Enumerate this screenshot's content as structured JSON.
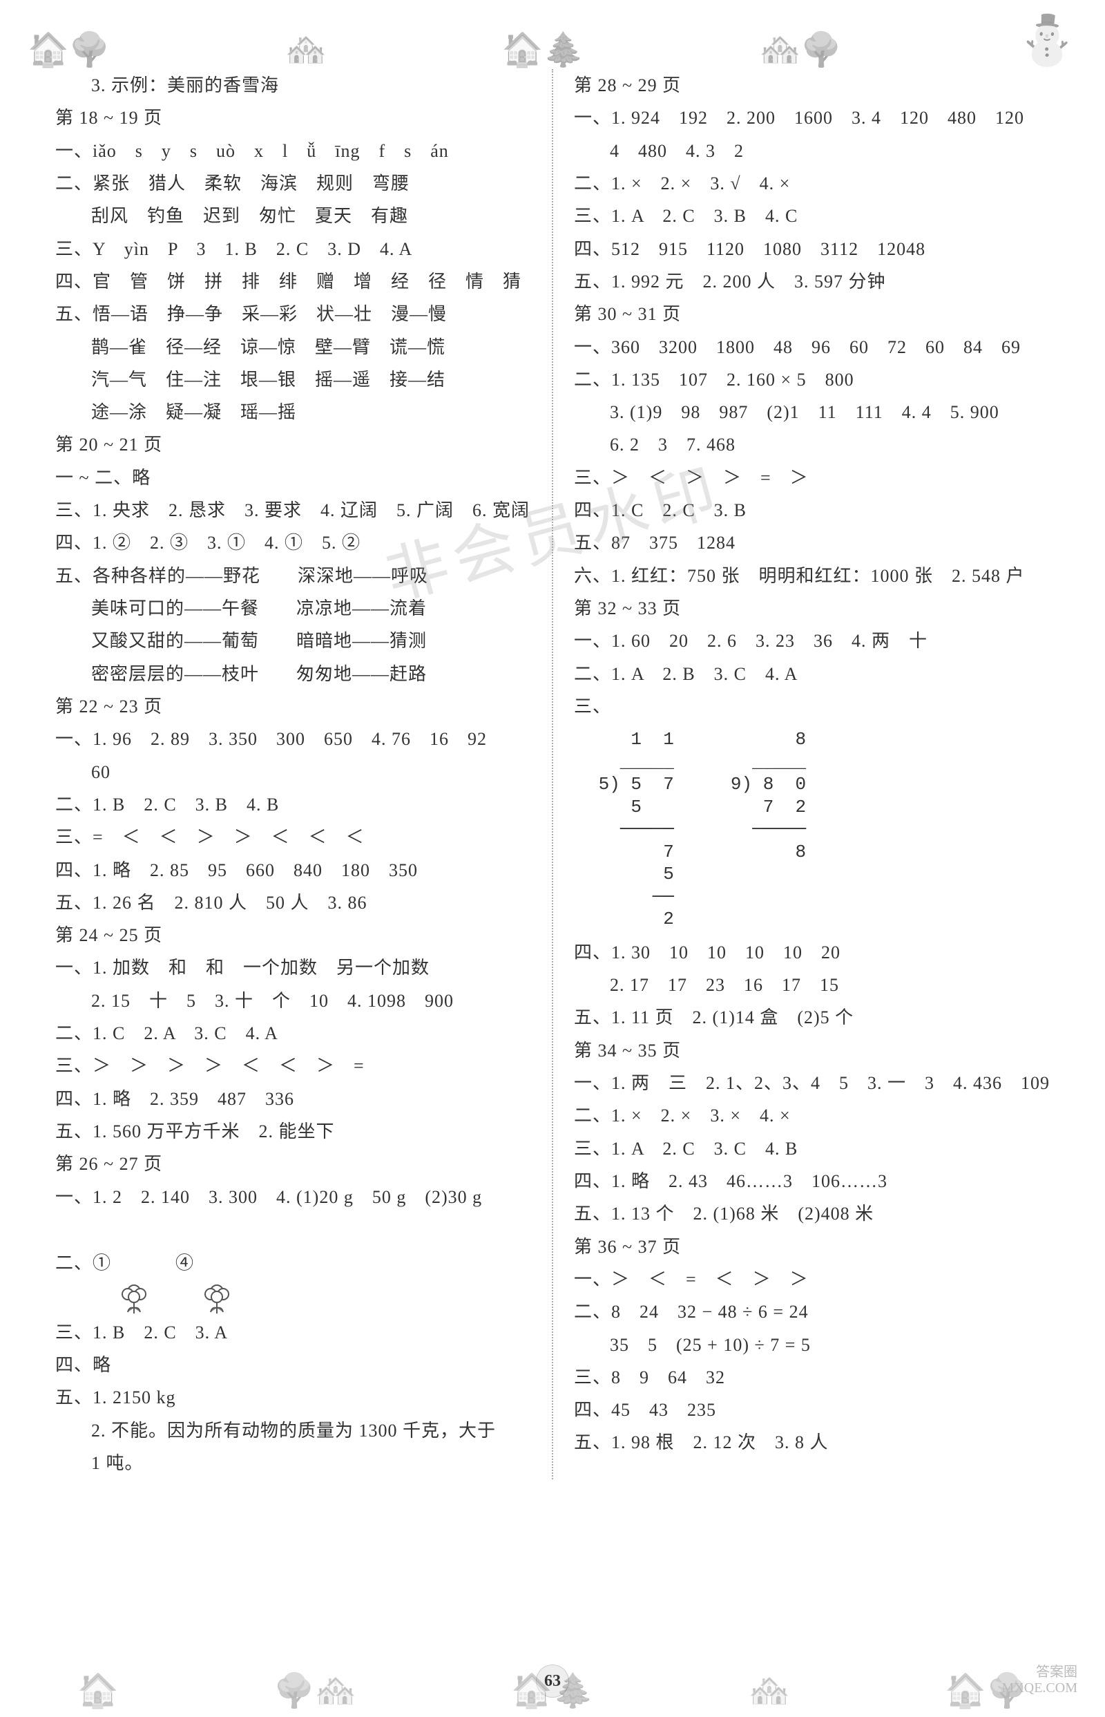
{
  "pageNumber": "63",
  "watermark": "非会员水印",
  "brand": {
    "line1": "答案圈",
    "line2": "MXQE.COM"
  },
  "left": [
    {
      "cls": "indent1",
      "t": "3. 示例：美丽的香雪海"
    },
    {
      "cls": "",
      "t": "第 18 ~ 19 页"
    },
    {
      "cls": "",
      "t": "一、iǎo　s　y　s　uò　x　l　ǚ　īng　f　s　án"
    },
    {
      "cls": "",
      "t": "二、紧张　猎人　柔软　海滨　规则　弯腰"
    },
    {
      "cls": "indent1",
      "t": "刮风　钓鱼　迟到　匆忙　夏天　有趣"
    },
    {
      "cls": "",
      "t": "三、Y　yìn　P　3　1. B　2. C　3. D　4. A"
    },
    {
      "cls": "",
      "t": "四、官　管　饼　拼　排　绯　赠　增　经　径　情　猜"
    },
    {
      "cls": "",
      "t": "五、悟—语　挣—争　采—彩　状—壮　漫—慢"
    },
    {
      "cls": "indent1",
      "t": "鹊—雀　径—经　谅—惊　壁—臂　谎—慌"
    },
    {
      "cls": "indent1",
      "t": "汽—气　住—注　垠—银　摇—遥　接—结"
    },
    {
      "cls": "indent1",
      "t": "途—涂　疑—凝　瑶—摇"
    },
    {
      "cls": "",
      "t": "第 20 ~ 21 页"
    },
    {
      "cls": "",
      "t": "一 ~ 二、略"
    },
    {
      "cls": "",
      "t": "三、1. 央求　2. 恳求　3. 要求　4. 辽阔　5. 广阔　6. 宽阔"
    },
    {
      "cls": "",
      "t": "四、1. ②　2. ③　3. ①　4. ①　5. ②"
    },
    {
      "cls": "",
      "t": "五、各种各样的——野花　　深深地——呼吸"
    },
    {
      "cls": "indent1",
      "t": "美味可口的——午餐　　凉凉地——流着"
    },
    {
      "cls": "indent1",
      "t": "又酸又甜的——葡萄　　暗暗地——猜测"
    },
    {
      "cls": "indent1",
      "t": "密密层层的——枝叶　　匆匆地——赶路"
    },
    {
      "cls": "",
      "t": "第 22 ~ 23 页"
    },
    {
      "cls": "",
      "t": "一、1. 96　2. 89　3. 350　300　650　4. 76　16　92"
    },
    {
      "cls": "indent1",
      "t": "60"
    },
    {
      "cls": "",
      "t": "二、1. B　2. C　3. B　4. B"
    },
    {
      "cls": "",
      "t": "三、=　＜　＜　＞　＞　＜　＜　＜"
    },
    {
      "cls": "",
      "t": "四、1. 略　2. 85　95　660　840　180　350"
    },
    {
      "cls": "",
      "t": "五、1. 26 名　2. 810 人　50 人　3. 86"
    },
    {
      "cls": "",
      "t": "第 24 ~ 25 页"
    },
    {
      "cls": "",
      "t": "一、1. 加数　和　和　一个加数　另一个加数"
    },
    {
      "cls": "indent1",
      "t": "2. 15　十　5　3. 十　个　10　4. 1098　900"
    },
    {
      "cls": "",
      "t": "二、1. C　2. A　3. C　4. A"
    },
    {
      "cls": "",
      "t": "三、＞　＞　＞　＞　＜　＜　＞　="
    },
    {
      "cls": "",
      "t": "四、1. 略　2. 359　487　336"
    },
    {
      "cls": "",
      "t": "五、1. 560 万平方千米　2. 能坐下"
    },
    {
      "cls": "",
      "t": "第 26 ~ 27 页"
    },
    {
      "cls": "",
      "t": "一、1. 2　2. 140　3. 300　4. (1)20 g　50 g　(2)30 g"
    },
    {
      "cls": "",
      "t": "__FLOWER_ROW__"
    },
    {
      "cls": "",
      "t": "三、1. B　2. C　3. A"
    },
    {
      "cls": "",
      "t": "四、略"
    },
    {
      "cls": "",
      "t": "五、1. 2150 kg"
    },
    {
      "cls": "indent1",
      "t": "2. 不能。因为所有动物的质量为 1300 千克，大于"
    },
    {
      "cls": "indent1",
      "t": "1 吨。"
    }
  ],
  "right": [
    {
      "cls": "",
      "t": "第 28 ~ 29 页"
    },
    {
      "cls": "",
      "t": "一、1. 924　192　2. 200　1600　3. 4　120　480　120"
    },
    {
      "cls": "indent1",
      "t": "4　480　4. 3　2"
    },
    {
      "cls": "",
      "t": "二、1. ×　2. ×　3. √　4. ×"
    },
    {
      "cls": "",
      "t": "三、1. A　2. C　3. B　4. C"
    },
    {
      "cls": "",
      "t": "四、512　915　1120　1080　3112　12048"
    },
    {
      "cls": "",
      "t": "五、1. 992 元　2. 200 人　3. 597 分钟"
    },
    {
      "cls": "",
      "t": "第 30 ~ 31 页"
    },
    {
      "cls": "",
      "t": "一、360　3200　1800　48　96　60　72　60　84　69"
    },
    {
      "cls": "",
      "t": "二、1. 135　107　2. 160 × 5　800"
    },
    {
      "cls": "indent1",
      "t": "3. (1)9　98　987　(2)1　11　111　4. 4　5. 900"
    },
    {
      "cls": "indent1",
      "t": "6. 2　3　7. 468"
    },
    {
      "cls": "",
      "t": "三、＞　＜　＞　＞　=　＞"
    },
    {
      "cls": "",
      "t": "四、1. C　2. C　3. B"
    },
    {
      "cls": "",
      "t": "五、87　375　1284"
    },
    {
      "cls": "",
      "t": "六、1. 红红：750 张　明明和红红：1000 张　2. 548 户"
    },
    {
      "cls": "",
      "t": "第 32 ~ 33 页"
    },
    {
      "cls": "",
      "t": "一、1. 60　20　2. 6　3. 23　36　4. 两　十"
    },
    {
      "cls": "",
      "t": "二、1. A　2. B　3. C　4. A"
    },
    {
      "cls": "",
      "t": "三、"
    },
    {
      "cls": "",
      "t": "__LONGDIV__"
    },
    {
      "cls": "",
      "t": "四、1. 30　10　10　10　10　20"
    },
    {
      "cls": "indent1",
      "t": "2. 17　17　23　16　17　15"
    },
    {
      "cls": "",
      "t": "五、1. 11 页　2. (1)14 盒　(2)5 个"
    },
    {
      "cls": "",
      "t": "第 34 ~ 35 页"
    },
    {
      "cls": "",
      "t": "一、1. 两　三　2. 1、2、3、4　5　3. 一　3　4. 436　109"
    },
    {
      "cls": "",
      "t": "二、1. ×　2. ×　3. ×　4. ×"
    },
    {
      "cls": "",
      "t": "三、1. A　2. C　3. C　4. B"
    },
    {
      "cls": "",
      "t": "四、1. 略　2. 43　46……3　106……3"
    },
    {
      "cls": "",
      "t": "五、1. 13 个　2. (1)68 米　(2)408 米"
    },
    {
      "cls": "",
      "t": "第 36 ~ 37 页"
    },
    {
      "cls": "",
      "t": "一、＞　＜　=　＜　＞　＞"
    },
    {
      "cls": "",
      "t": "二、8　24　32 − 48 ÷ 6 = 24"
    },
    {
      "cls": "indent1",
      "t": "35　5　(25 + 10) ÷ 7 = 5"
    },
    {
      "cls": "",
      "t": "三、8　9　64　32"
    },
    {
      "cls": "",
      "t": "四、45　43　235"
    },
    {
      "cls": "",
      "t": "五、1. 98 根　2. 12 次　3. 8 人"
    }
  ],
  "longdiv": {
    "a": [
      "    1  1",
      "   _____",
      " 5) 5  7",
      "    5   ",
      "   ─────",
      "       7",
      "       5",
      "      ──",
      "       2"
    ],
    "b": [
      "       8",
      "   _____",
      " 9) 8  0",
      "    7  2",
      "   ─────",
      "       8"
    ]
  },
  "flowerRow": {
    "prefix": "二、①",
    "mid": "　④"
  }
}
